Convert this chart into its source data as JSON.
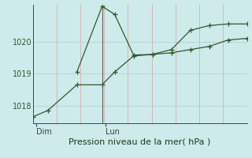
{
  "background_color": "#ceeaea",
  "plot_bg_color": "#ceeaea",
  "grid_color": "#b8d4d4",
  "grid_color_v": "#d4b8b8",
  "line_color": "#2d5a2d",
  "xlabel": "Pression niveau de la mer( hPa )",
  "ylim": [
    1017.45,
    1021.15
  ],
  "yticks": [
    1018,
    1019,
    1020
  ],
  "xlim": [
    0,
    17
  ],
  "vline_x": 5.5,
  "day_ticks": [
    0.3,
    5.8
  ],
  "day_labels": [
    "Dim",
    "Lun"
  ],
  "num_xgrid": 9,
  "line1_x": [
    0,
    1.2,
    3.5,
    5.5,
    6.5,
    8.0,
    9.5,
    11.0,
    12.5,
    14.0,
    15.5,
    17.0
  ],
  "line1_y": [
    1017.65,
    1017.85,
    1018.65,
    1018.65,
    1019.05,
    1019.55,
    1019.6,
    1019.65,
    1019.75,
    1019.85,
    1020.05,
    1020.1
  ],
  "line2_x": [
    3.5,
    5.5,
    6.5,
    8.0,
    9.5,
    11.0,
    12.5,
    14.0,
    15.5,
    17.0
  ],
  "line2_y": [
    1019.05,
    1021.1,
    1020.85,
    1019.58,
    1019.6,
    1019.75,
    1020.35,
    1020.5,
    1020.55,
    1020.55
  ],
  "marker_size": 4,
  "linewidth": 0.9,
  "xlabel_fontsize": 8,
  "tick_fontsize": 7
}
